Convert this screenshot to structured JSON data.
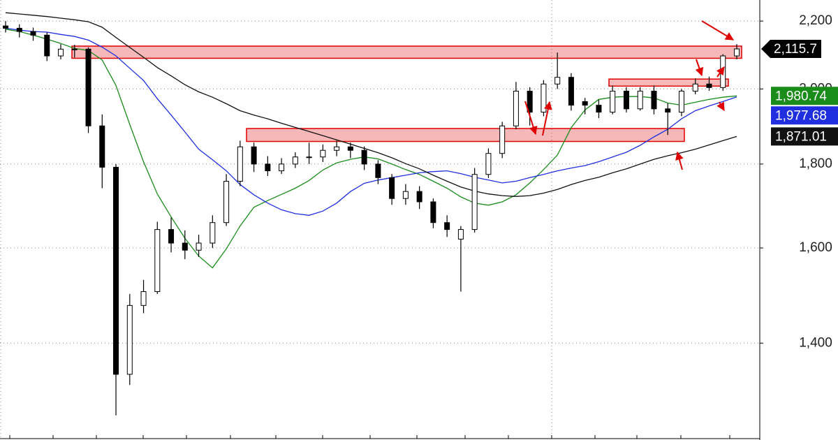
{
  "chart_data": {
    "type": "candlestick",
    "log": true,
    "grid": true,
    "ylim": [
      1222,
      2266
    ],
    "yticks": [
      {
        "value": 1400,
        "label": "1,400"
      },
      {
        "value": 1600,
        "label": "1,600"
      },
      {
        "value": 1800,
        "label": "1,800"
      },
      {
        "value": 2000,
        "label": "2,000"
      },
      {
        "value": 2200,
        "label": "2,200"
      }
    ],
    "candles": {
      "color": "#000000",
      "last_label": "2,115.7",
      "values": [
        [
          2185,
          2200,
          2165,
          2178
        ],
        [
          2178,
          2190,
          2150,
          2168
        ],
        [
          2168,
          2180,
          2140,
          2157
        ],
        [
          2157,
          2165,
          2080,
          2095
        ],
        [
          2095,
          2130,
          2085,
          2115
        ],
        [
          2115,
          2128,
          2090,
          2115
        ],
        [
          2115,
          2120,
          1880,
          1899
        ],
        [
          1899,
          1930,
          1740,
          1792
        ],
        [
          1792,
          1800,
          1265,
          1340
        ],
        [
          1340,
          1500,
          1320,
          1476
        ],
        [
          1476,
          1530,
          1460,
          1505
        ],
        [
          1505,
          1660,
          1500,
          1642
        ],
        [
          1642,
          1670,
          1590,
          1611
        ],
        [
          1611,
          1640,
          1575,
          1595
        ],
        [
          1595,
          1630,
          1580,
          1611
        ],
        [
          1611,
          1675,
          1600,
          1658
        ],
        [
          1658,
          1775,
          1650,
          1757
        ],
        [
          1757,
          1860,
          1745,
          1844
        ],
        [
          1844,
          1855,
          1780,
          1800
        ],
        [
          1800,
          1820,
          1770,
          1783
        ],
        [
          1783,
          1815,
          1775,
          1800
        ],
        [
          1800,
          1830,
          1790,
          1818
        ],
        [
          1818,
          1855,
          1800,
          1818
        ],
        [
          1818,
          1850,
          1805,
          1835
        ],
        [
          1835,
          1860,
          1820,
          1844
        ],
        [
          1844,
          1855,
          1815,
          1835
        ],
        [
          1835,
          1845,
          1785,
          1800
        ],
        [
          1800,
          1810,
          1750,
          1766
        ],
        [
          1766,
          1775,
          1700,
          1715
        ],
        [
          1715,
          1750,
          1700,
          1732
        ],
        [
          1732,
          1745,
          1690,
          1707
        ],
        [
          1707,
          1715,
          1645,
          1658
        ],
        [
          1658,
          1675,
          1625,
          1642
        ],
        [
          1620,
          1650,
          1505,
          1642
        ],
        [
          1642,
          1790,
          1635,
          1774
        ],
        [
          1774,
          1840,
          1765,
          1827
        ],
        [
          1827,
          1910,
          1815,
          1899
        ],
        [
          1899,
          2020,
          1890,
          1994
        ],
        [
          1994,
          2005,
          1900,
          1936
        ],
        [
          1936,
          2025,
          1925,
          2014
        ],
        [
          2014,
          2105,
          2000,
          2033
        ],
        [
          2033,
          2045,
          1940,
          1955
        ],
        [
          1965,
          1975,
          1930,
          1955
        ],
        [
          1955,
          1970,
          1920,
          1936
        ],
        [
          1936,
          2010,
          1930,
          1994
        ],
        [
          1994,
          2005,
          1935,
          1945
        ],
        [
          1945,
          2005,
          1940,
          1994
        ],
        [
          1994,
          2010,
          1930,
          1945
        ],
        [
          1945,
          1960,
          1875,
          1936
        ],
        [
          1936,
          2000,
          1925,
          1994
        ],
        [
          1994,
          2030,
          1985,
          2014
        ],
        [
          2014,
          2035,
          1995,
          2004
        ],
        [
          2004,
          2100,
          1995,
          2095
        ],
        [
          2095,
          2130,
          2085,
          2115.7
        ]
      ]
    },
    "lines": [
      {
        "color": "#1a8c1a",
        "last_label": "1,980.74",
        "values": [
          2175,
          2168,
          2157,
          2145,
          2132,
          2117,
          2111,
          2083,
          2010,
          1903,
          1806,
          1726,
          1671,
          1622,
          1582,
          1556,
          1598,
          1650,
          1694,
          1710,
          1725,
          1740,
          1759,
          1785,
          1803,
          1812,
          1818,
          1813,
          1800,
          1786,
          1774,
          1757,
          1740,
          1719,
          1704,
          1699,
          1707,
          1724,
          1753,
          1786,
          1823,
          1894,
          1942,
          1971,
          1977,
          1979,
          1979,
          1975,
          1961,
          1955,
          1963,
          1971,
          1977,
          1980.74
        ]
      },
      {
        "color": "#1f2fe0",
        "last_label": "1,977.68",
        "values": [
          2178,
          2172,
          2168,
          2166,
          2159,
          2153,
          2142,
          2121,
          2095,
          2059,
          2024,
          1973,
          1928,
          1883,
          1838,
          1811,
          1783,
          1749,
          1724,
          1704,
          1688,
          1679,
          1675,
          1685,
          1704,
          1732,
          1752,
          1760,
          1766,
          1772,
          1778,
          1781,
          1783,
          1776,
          1767,
          1760,
          1753,
          1757,
          1766,
          1774,
          1783,
          1790,
          1796,
          1806,
          1818,
          1830,
          1848,
          1870,
          1890,
          1918,
          1940,
          1953,
          1965,
          1977.68
        ]
      },
      {
        "color": "#111111",
        "last_label": "1,871.01",
        "values": [
          2226,
          2222,
          2218,
          2214,
          2209,
          2204,
          2198,
          2181,
          2150,
          2120,
          2091,
          2061,
          2037,
          2012,
          1992,
          1977,
          1959,
          1940,
          1928,
          1918,
          1906,
          1895,
          1884,
          1873,
          1862,
          1851,
          1840,
          1829,
          1816,
          1801,
          1788,
          1772,
          1757,
          1743,
          1733,
          1726,
          1722,
          1720,
          1722,
          1728,
          1737,
          1749,
          1759,
          1767,
          1778,
          1788,
          1800,
          1812,
          1821,
          1829,
          1838,
          1849,
          1860,
          1871.01
        ]
      }
    ],
    "zone_color": "#e00000",
    "zones": [
      [
        2088,
        2124
      ],
      [
        2008,
        2028
      ],
      [
        1858,
        1892
      ]
    ]
  }
}
